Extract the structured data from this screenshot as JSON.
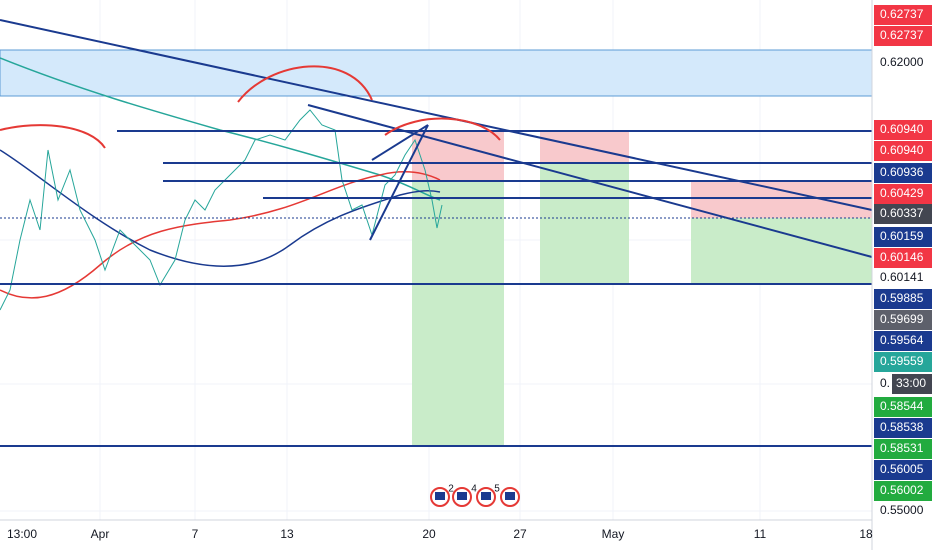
{
  "price_scale": {
    "labels": [
      "0.62737",
      "0.62737",
      "0.62000",
      "0.60940",
      "0.60940",
      "0.60936",
      "0.60429",
      "0.60337",
      "0.60159",
      "0.60146",
      "0.60141",
      "0.59885",
      "0.59699",
      "0.59564",
      "0.59559",
      "0.",
      "0.58544",
      "0.58538",
      "0.58531",
      "0.56005",
      "0.56002",
      "0.55000"
    ],
    "countdown": "33:00"
  },
  "time_scale": {
    "labels": [
      "13:00",
      "Apr",
      "7",
      "13",
      "20",
      "27",
      "May",
      "11",
      "18"
    ]
  },
  "events": [
    "2",
    "4",
    "5"
  ]
}
